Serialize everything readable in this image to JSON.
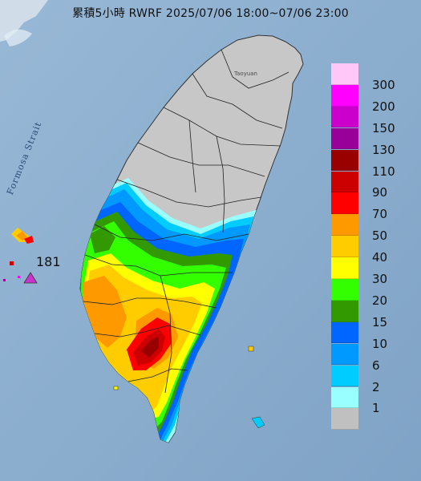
{
  "title": "累積5小時 RWRF 2025/07/06 18:00~07/06 23:00",
  "map_labels": {
    "strait": "Formosa Strait",
    "taoyuan": "Taoyuan",
    "max_value": "181"
  },
  "legend": [
    {
      "label": "300",
      "color": "#ffc6f8"
    },
    {
      "label": "200",
      "color": "#ff00ff"
    },
    {
      "label": "150",
      "color": "#cc00cc"
    },
    {
      "label": "130",
      "color": "#990099"
    },
    {
      "label": "110",
      "color": "#990000"
    },
    {
      "label": "90",
      "color": "#cc0000"
    },
    {
      "label": "70",
      "color": "#ff0000"
    },
    {
      "label": "50",
      "color": "#ff9900"
    },
    {
      "label": "40",
      "color": "#ffcc00"
    },
    {
      "label": "30",
      "color": "#ffff00"
    },
    {
      "label": "20",
      "color": "#33ff00"
    },
    {
      "label": "15",
      "color": "#339900"
    },
    {
      "label": "10",
      "color": "#0066ff"
    },
    {
      "label": "6",
      "color": "#0099ff"
    },
    {
      "label": "2",
      "color": "#00ccff"
    },
    {
      "label": "1",
      "color": "#99ffff"
    },
    {
      "label": "",
      "color": "#c0c0c0"
    }
  ],
  "colors": {
    "sea": "#8fb1d1",
    "land_dry": "#c7c7c7",
    "marker": "#cc33cc"
  }
}
